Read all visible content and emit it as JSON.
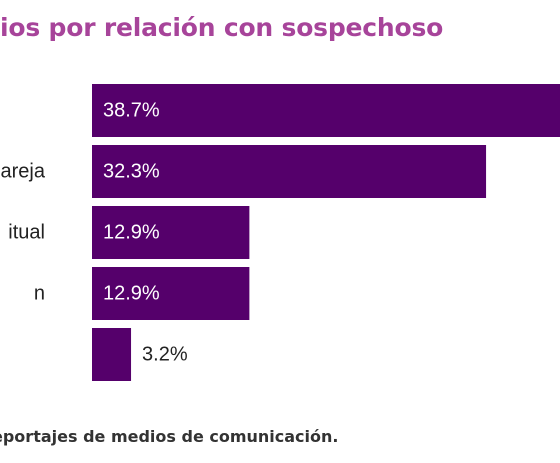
{
  "title": "ios por relación con sospechoso",
  "footnote": "eportajes de medios de comunicación.",
  "colors": {
    "bar": "#55006b",
    "title": "#a7449a",
    "label_inside": "#ffffff",
    "label_outside": "#222222"
  },
  "chart_data": {
    "type": "bar",
    "orientation": "horizontal",
    "categories": [
      "",
      "xpareja",
      "itual",
      "n",
      ""
    ],
    "values": [
      38.7,
      32.3,
      12.9,
      12.9,
      3.2
    ],
    "value_labels": [
      "38.7%",
      "32.3%",
      "12.9%",
      "12.9%",
      "3.2%"
    ],
    "title": "ios por relación con sospechoso",
    "xlabel": "",
    "ylabel": ""
  }
}
